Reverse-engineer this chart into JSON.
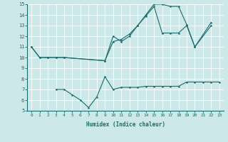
{
  "xlabel": "Humidex (Indice chaleur)",
  "xlim": [
    -0.5,
    23.5
  ],
  "ylim": [
    5,
    15
  ],
  "xticks": [
    0,
    1,
    2,
    3,
    4,
    5,
    6,
    7,
    8,
    9,
    10,
    11,
    12,
    13,
    14,
    15,
    16,
    17,
    18,
    19,
    20,
    21,
    22,
    23
  ],
  "yticks": [
    5,
    6,
    7,
    8,
    9,
    10,
    11,
    12,
    13,
    14,
    15
  ],
  "bg_color": "#cce8e8",
  "line_color": "#1a6b6b",
  "grid_color": "#ffffff",
  "s1_x": [
    0,
    1,
    2,
    3,
    4,
    9,
    10,
    11,
    12,
    13,
    14,
    15,
    16,
    17,
    18,
    19,
    20,
    22
  ],
  "s1_y": [
    11,
    10,
    10,
    10,
    10,
    9.7,
    12.0,
    11.5,
    12.0,
    13.0,
    14.0,
    15.0,
    15.0,
    14.8,
    14.8,
    13.1,
    11.0,
    13.0
  ],
  "s2_x": [
    0,
    1,
    2,
    3,
    4,
    9,
    10,
    11,
    12,
    13,
    14,
    15,
    16,
    17,
    18,
    19,
    20,
    22
  ],
  "s2_y": [
    11,
    10,
    10,
    10,
    10,
    9.7,
    11.5,
    11.7,
    12.2,
    13.0,
    13.9,
    14.8,
    12.3,
    12.3,
    12.3,
    13.0,
    11.0,
    13.3
  ],
  "s3_x": [
    3,
    4,
    5,
    6,
    7,
    8,
    9,
    10,
    11,
    12,
    13,
    14,
    15,
    16,
    17,
    18,
    19,
    20,
    21,
    22,
    23
  ],
  "s3_y": [
    7.0,
    7.0,
    6.5,
    6.0,
    5.3,
    6.3,
    8.2,
    7.0,
    7.2,
    7.2,
    7.2,
    7.3,
    7.3,
    7.3,
    7.3,
    7.3,
    7.7,
    7.7,
    7.7,
    7.7,
    7.7
  ]
}
